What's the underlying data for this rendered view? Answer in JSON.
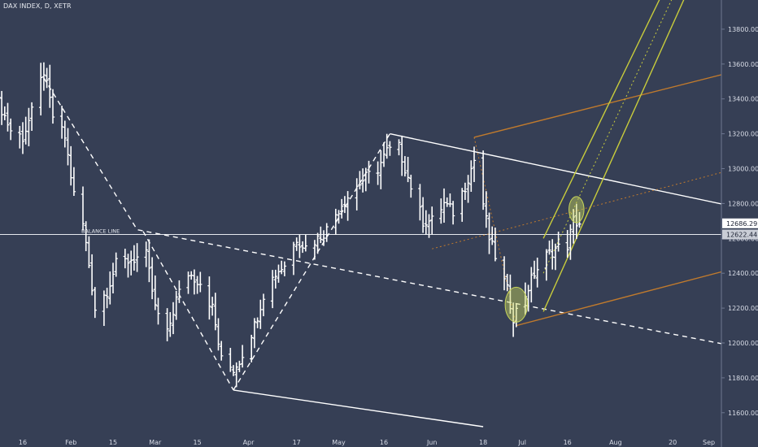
{
  "chart_data": {
    "type": "ohlc",
    "title": "DAX INDEX, D, XETR",
    "y_ticks": [
      11600,
      11800,
      12000,
      12200,
      12400,
      12600,
      12800,
      13000,
      13200,
      13400,
      13600,
      13800
    ],
    "x_ticks": [
      {
        "label": "16",
        "date": "2018-01-16"
      },
      {
        "label": "Feb",
        "date": "2018-02-01"
      },
      {
        "label": "15",
        "date": "2018-02-15"
      },
      {
        "label": "Mar",
        "date": "2018-03-01"
      },
      {
        "label": "15",
        "date": "2018-03-15"
      },
      {
        "label": "Apr",
        "date": "2018-04-01"
      },
      {
        "label": "17",
        "date": "2018-04-17"
      },
      {
        "label": "May",
        "date": "2018-05-01"
      },
      {
        "label": "16",
        "date": "2018-05-16"
      },
      {
        "label": "Jun",
        "date": "2018-06-01"
      },
      {
        "label": "18",
        "date": "2018-06-18"
      },
      {
        "label": "Jul",
        "date": "2018-07-01"
      },
      {
        "label": "16",
        "date": "2018-07-16"
      },
      {
        "label": "Aug",
        "date": "2018-08-01"
      },
      {
        "label": "20",
        "date": "2018-08-20"
      },
      {
        "label": "Sep",
        "date": "2018-09-01"
      }
    ],
    "price_tags": [
      {
        "label": "12686.29",
        "value": 12686.29,
        "bg": "#ffffff"
      },
      {
        "label": "12622.44",
        "value": 12622.44,
        "bg": "#c9cdd6"
      }
    ],
    "annotations": [
      {
        "text": "BALANCE LINE",
        "value": 12622.44
      }
    ],
    "close_path": [
      [
        "2018-01-08",
        13380
      ],
      [
        "2018-01-12",
        13220
      ],
      [
        "2018-01-16",
        13180
      ],
      [
        "2018-01-19",
        13320
      ],
      [
        "2018-01-23",
        13560
      ],
      [
        "2018-01-26",
        13300
      ],
      [
        "2018-01-30",
        13180
      ],
      [
        "2018-02-02",
        12850
      ],
      [
        "2018-02-05",
        12680
      ],
      [
        "2018-02-07",
        12450
      ],
      [
        "2018-02-09",
        12200
      ],
      [
        "2018-02-13",
        12300
      ],
      [
        "2018-02-16",
        12450
      ],
      [
        "2018-02-21",
        12480
      ],
      [
        "2018-02-26",
        12500
      ],
      [
        "2018-03-01",
        12200
      ],
      [
        "2018-03-05",
        12050
      ],
      [
        "2018-03-08",
        12250
      ],
      [
        "2018-03-12",
        12400
      ],
      [
        "2018-03-16",
        12350
      ],
      [
        "2018-03-20",
        12200
      ],
      [
        "2018-03-23",
        11900
      ],
      [
        "2018-03-27",
        11850
      ],
      [
        "2018-03-29",
        11900
      ],
      [
        "2018-04-03",
        12100
      ],
      [
        "2018-04-06",
        12280
      ],
      [
        "2018-04-10",
        12400
      ],
      [
        "2018-04-13",
        12450
      ],
      [
        "2018-04-17",
        12600
      ],
      [
        "2018-04-20",
        12550
      ],
      [
        "2018-04-24",
        12600
      ],
      [
        "2018-04-27",
        12650
      ],
      [
        "2018-05-02",
        12800
      ],
      [
        "2018-05-07",
        12900
      ],
      [
        "2018-05-10",
        12950
      ],
      [
        "2018-05-14",
        13000
      ],
      [
        "2018-05-17",
        13100
      ],
      [
        "2018-05-21",
        13120
      ],
      [
        "2018-05-24",
        12950
      ],
      [
        "2018-05-29",
        12700
      ],
      [
        "2018-06-01",
        12700
      ],
      [
        "2018-06-05",
        12800
      ],
      [
        "2018-06-08",
        12750
      ],
      [
        "2018-06-12",
        12900
      ],
      [
        "2018-06-15",
        13050
      ],
      [
        "2018-06-18",
        12800
      ],
      [
        "2018-06-20",
        12600
      ],
      [
        "2018-06-22",
        12500
      ],
      [
        "2018-06-26",
        12300
      ],
      [
        "2018-06-28",
        12150
      ],
      [
        "2018-07-02",
        12280
      ],
      [
        "2018-07-05",
        12400
      ],
      [
        "2018-07-09",
        12500
      ],
      [
        "2018-07-12",
        12540
      ],
      [
        "2018-07-16",
        12560
      ],
      [
        "2018-07-18",
        12700
      ],
      [
        "2018-07-20",
        12686.29
      ]
    ],
    "lines": [
      {
        "name": "swing-down",
        "style": "dashed",
        "color": "#ffffff",
        "points": [
          [
            "2018-01-23",
            13520
          ],
          [
            "2018-02-23",
            12650
          ],
          [
            "2018-09-10",
            11980
          ]
        ]
      },
      {
        "name": "swing-drop",
        "style": "dashed",
        "color": "#ffffff",
        "points": [
          [
            "2018-02-25",
            12640
          ],
          [
            "2018-03-27",
            11730
          ]
        ]
      },
      {
        "name": "swing-up",
        "style": "dashed",
        "color": "#ffffff",
        "points": [
          [
            "2018-03-27",
            11730
          ],
          [
            "2018-05-18",
            13200
          ]
        ]
      },
      {
        "name": "trend-upper",
        "style": "solid",
        "color": "#ffffff",
        "points": [
          [
            "2018-05-18",
            13200
          ],
          [
            "2018-09-10",
            12780
          ]
        ]
      },
      {
        "name": "trend-lower",
        "style": "solid",
        "color": "#ffffff",
        "points": [
          [
            "2018-03-27",
            11730
          ],
          [
            "2018-06-18",
            11520
          ]
        ]
      },
      {
        "name": "fork-upper",
        "style": "solid",
        "color": "#c07a2d",
        "points": [
          [
            "2018-06-15",
            13180
          ],
          [
            "2018-09-10",
            13560
          ]
        ]
      },
      {
        "name": "fork-median",
        "style": "dotted",
        "color": "#c07a2d",
        "points": [
          [
            "2018-06-01",
            12540
          ],
          [
            "2018-09-10",
            13000
          ]
        ]
      },
      {
        "name": "fork-lower",
        "style": "solid",
        "color": "#c07a2d",
        "points": [
          [
            "2018-06-29",
            12100
          ],
          [
            "2018-09-10",
            12430
          ]
        ]
      },
      {
        "name": "fork-link",
        "style": "dotted",
        "color": "#c07a2d",
        "points": [
          [
            "2018-06-15",
            13180
          ],
          [
            "2018-06-29",
            12100
          ]
        ]
      },
      {
        "name": "channel-left",
        "style": "solid",
        "color": "#c8cc3c",
        "points": [
          [
            "2018-07-08",
            12600
          ],
          [
            "2018-08-17",
            14020
          ]
        ]
      },
      {
        "name": "channel-mid",
        "style": "dotted",
        "color": "#c8cc3c",
        "points": [
          [
            "2018-07-08",
            12400
          ],
          [
            "2018-08-21",
            14020
          ]
        ]
      },
      {
        "name": "channel-right",
        "style": "solid",
        "color": "#c8cc3c",
        "points": [
          [
            "2018-07-08",
            12180
          ],
          [
            "2018-08-25",
            14020
          ]
        ]
      }
    ],
    "highlights": [
      {
        "name": "low-ellipse",
        "cx": "2018-06-29",
        "cy": 12220,
        "rx_days": 3.7,
        "ry_value": 100,
        "color": "#c9d65a"
      },
      {
        "name": "high-ellipse",
        "cx": "2018-07-19",
        "cy": 12765,
        "rx_days": 2.5,
        "ry_value": 75,
        "color": "#c9d65a"
      }
    ]
  }
}
